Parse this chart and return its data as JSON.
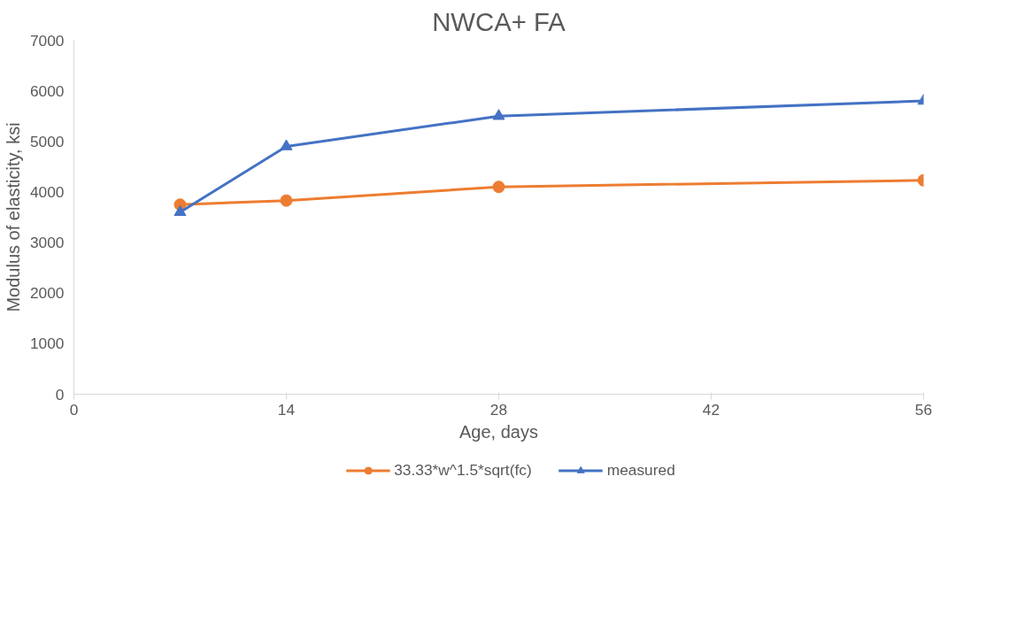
{
  "chart_data": {
    "type": "line",
    "title": "NWCA+ FA",
    "xlabel": "Age, days",
    "ylabel": "Modulus of elasticity, ksi",
    "x": [
      7,
      14,
      28,
      56
    ],
    "series": [
      {
        "name": "33.33*w^1.5*sqrt(fc)",
        "color": "#ed7d31",
        "marker": "circle",
        "values": [
          3750,
          3830,
          4100,
          4230
        ]
      },
      {
        "name": "measured",
        "color": "#4472c4",
        "marker": "triangle",
        "values": [
          3600,
          4900,
          5500,
          5800
        ]
      }
    ],
    "xlim": [
      0,
      56
    ],
    "xticks": [
      0,
      14,
      28,
      42,
      56
    ],
    "ylim": [
      0,
      7000
    ],
    "yticks": [
      0,
      1000,
      2000,
      3000,
      4000,
      5000,
      6000,
      7000
    ],
    "grid": false,
    "legend": "bottom",
    "line_style": "solid"
  }
}
